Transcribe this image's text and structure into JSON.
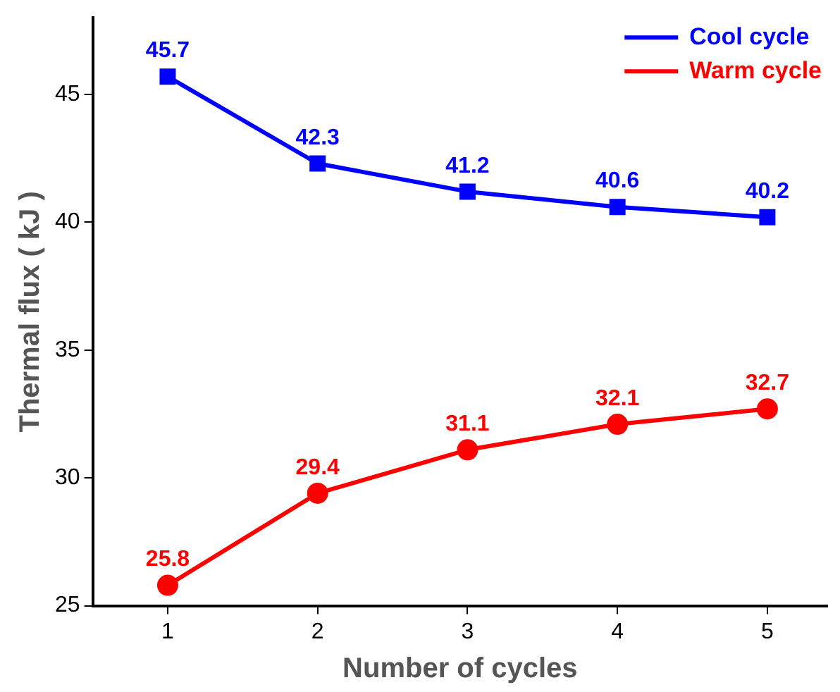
{
  "chart_data": {
    "type": "line",
    "xlabel": "Number of cycles",
    "ylabel": "Thermal flux ( kJ )",
    "x": [
      1,
      2,
      3,
      4,
      5
    ],
    "xlim": [
      0.5,
      5.4
    ],
    "xticks": [
      1,
      2,
      3,
      4,
      5
    ],
    "ylim": [
      25,
      48
    ],
    "yticks": [
      25,
      30,
      35,
      40,
      45
    ],
    "series": [
      {
        "name": "Cool cycle",
        "color": "#0000ff",
        "marker": "square",
        "values": [
          45.7,
          42.3,
          41.2,
          40.6,
          40.2
        ]
      },
      {
        "name": "Warm cycle",
        "color": "#ff0000",
        "marker": "circle",
        "values": [
          25.8,
          29.4,
          31.1,
          32.1,
          32.7
        ]
      }
    ],
    "data_labels": true,
    "grid": false,
    "legend": "top right",
    "line_style": "solid"
  }
}
